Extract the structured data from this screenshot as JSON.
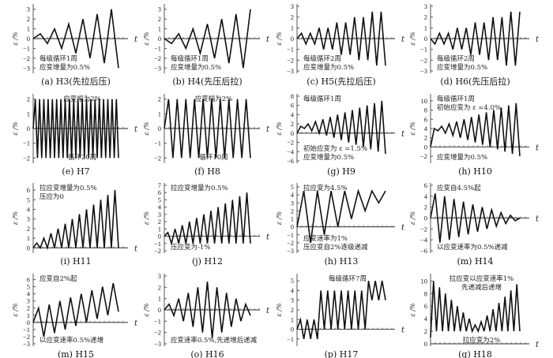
{
  "colors": {
    "line": "#111111",
    "axis": "#555555"
  },
  "chart_data": [
    {
      "type": "line",
      "id": "H3",
      "caption": "(a) H3(先拉后压)",
      "ylabel": "ε /%",
      "xlabel": "t",
      "ylim": [
        -3.3,
        3.3
      ],
      "yticks": [
        -3,
        -2,
        -1,
        0,
        1,
        2,
        3
      ],
      "values": [
        0,
        0.5,
        -0.5,
        1,
        -1,
        1.5,
        -1.5,
        2,
        -2,
        2.5,
        -2.5,
        3,
        -3
      ],
      "annotations": [
        {
          "position": "bottom-left",
          "lines": [
            "每级循环1周",
            "应变增量为0.5%"
          ]
        }
      ]
    },
    {
      "type": "line",
      "id": "H4",
      "caption": "(b) H4(先压后拉)",
      "ylabel": "ε /%",
      "xlabel": "t",
      "ylim": [
        -3.3,
        3.3
      ],
      "yticks": [
        -3,
        -2,
        -1,
        0,
        1,
        2,
        3
      ],
      "values": [
        0,
        -0.5,
        0.5,
        -1,
        1,
        -1.5,
        1.5,
        -2,
        2,
        -2.5,
        2.5,
        -3,
        3
      ],
      "annotations": [
        {
          "position": "bottom-left",
          "lines": [
            "每级循环1周",
            "应变增量为0.5%"
          ]
        }
      ]
    },
    {
      "type": "line",
      "id": "H5",
      "caption": "(c) H5(先拉后压)",
      "ylabel": "ε /%",
      "xlabel": "t",
      "ylim": [
        -3,
        3
      ],
      "yticks": [
        -3,
        -2,
        -1,
        0,
        1,
        2,
        3
      ],
      "values": [
        0,
        0.5,
        -0.5,
        0.5,
        -0.5,
        1,
        -1,
        1,
        -1,
        1.5,
        -1.5,
        1.5,
        -1.5,
        2,
        -2,
        2,
        -2,
        2.5,
        -2.5,
        2.5,
        -2.5
      ],
      "annotations": [
        {
          "position": "bottom-left",
          "lines": [
            "每级循环2周",
            "应变增量为0.5%"
          ]
        }
      ]
    },
    {
      "type": "line",
      "id": "H6",
      "caption": "(d) H6(先压后拉)",
      "ylabel": "ε /%",
      "xlabel": "t",
      "ylim": [
        -3,
        3
      ],
      "yticks": [
        -3,
        -2,
        -1,
        0,
        1,
        2,
        3
      ],
      "values": [
        0,
        -0.5,
        0.5,
        -0.5,
        0.5,
        -1,
        1,
        -1,
        1,
        -1.5,
        1.5,
        -1.5,
        1.5,
        -2,
        2,
        -2,
        2,
        -2.5,
        2.5,
        -2.5,
        2.5
      ],
      "annotations": [
        {
          "position": "bottom-left",
          "lines": [
            "每级循环2周",
            "应变增量为0.5%"
          ]
        }
      ]
    },
    {
      "type": "line",
      "id": "H7",
      "caption": "(e) H7",
      "ylabel": "ε /%",
      "xlabel": "t",
      "ylim": [
        -2.2,
        2.2
      ],
      "yticks": [
        -2,
        -1,
        0,
        1,
        2
      ],
      "values": [
        0,
        2,
        -2,
        2,
        -2,
        2,
        -2,
        2,
        -2,
        2,
        -2,
        2,
        -2,
        2,
        -2,
        2,
        -2,
        2,
        -2,
        2,
        -2,
        2,
        -2,
        2,
        -2,
        2,
        -2,
        2,
        -2,
        2,
        -2,
        2,
        -2,
        2,
        -2,
        2,
        -2,
        2,
        -2,
        2,
        -2
      ],
      "annotations": [
        {
          "position": "top-center",
          "lines": [
            "应变幅为2%"
          ]
        },
        {
          "position": "bottom-center",
          "lines": [
            "循环20周"
          ]
        }
      ]
    },
    {
      "type": "line",
      "id": "H8",
      "caption": "(f) H8",
      "ylabel": "ε /%",
      "xlabel": "t",
      "ylim": [
        -2.2,
        2.2
      ],
      "yticks": [
        -2,
        -1,
        0,
        1,
        2
      ],
      "values": [
        0,
        2,
        -2,
        2,
        -2,
        2,
        -2,
        2,
        -2,
        2,
        -2,
        2,
        -2,
        2,
        -2,
        2,
        -2,
        2,
        -2,
        2,
        -2
      ],
      "annotations": [
        {
          "position": "top-center",
          "lines": [
            "应变幅为2%"
          ]
        },
        {
          "position": "bottom-center",
          "lines": [
            "循环10周"
          ]
        }
      ]
    },
    {
      "type": "line",
      "id": "H9",
      "caption": "(g) H9",
      "ylabel": "ε /%",
      "xlabel": "t",
      "ylim": [
        -6,
        8
      ],
      "yticks": [
        -6,
        -4,
        -2,
        0,
        2,
        4,
        6,
        8
      ],
      "values": [
        0,
        1.5,
        1,
        2,
        0.5,
        2.5,
        0,
        3,
        -0.5,
        3.5,
        -1,
        4,
        -1.5,
        4.5,
        -2,
        5,
        -2.5,
        5.5,
        -3,
        6,
        -3.5,
        6.5,
        -4,
        7,
        -4.5
      ],
      "annotations": [
        {
          "position": "top-left",
          "lines": [
            "每级循环1周"
          ]
        },
        {
          "position": "bottom-left",
          "lines": [
            "初始应变为 ε =1.5%",
            "应变增量为0.5%"
          ]
        }
      ]
    },
    {
      "type": "line",
      "id": "H10",
      "caption": "(h) H10",
      "ylabel": "ε /%",
      "xlabel": "t",
      "ylim": [
        -3,
        11
      ],
      "yticks": [
        -2,
        0,
        2,
        4,
        6,
        8,
        10
      ],
      "values": [
        0,
        4,
        3.5,
        4.5,
        3,
        5,
        2.5,
        5.5,
        2,
        6,
        1.5,
        6.5,
        1,
        7,
        0.5,
        7.5,
        0,
        8,
        -0.5,
        8.5,
        -1,
        9,
        -1.5,
        9.5,
        -2
      ],
      "annotations": [
        {
          "position": "top-left",
          "lines": [
            "每级循环1周",
            "初始应变为 ε =4.0%"
          ]
        },
        {
          "position": "bottom-left",
          "lines": [
            "应变增量为0.5%"
          ]
        }
      ]
    },
    {
      "type": "line",
      "id": "H11",
      "caption": "(i) H11",
      "ylabel": "ε /%",
      "xlabel": "t",
      "ylim": [
        -0.3,
        6.5
      ],
      "yticks": [
        0,
        1,
        2,
        3,
        4,
        5,
        6
      ],
      "values": [
        0,
        0.5,
        0,
        1,
        0,
        1.5,
        0,
        2,
        0,
        2.5,
        0,
        3,
        0,
        3.5,
        0,
        4,
        0,
        4.5,
        0,
        5,
        0,
        5.5,
        0,
        6,
        0
      ],
      "annotations": [
        {
          "position": "top-left",
          "lines": [
            "拉应变增量为0.5%",
            "压应为0"
          ]
        }
      ]
    },
    {
      "type": "line",
      "id": "H12",
      "caption": "(j) H12",
      "ylabel": "ε /%",
      "xlabel": "t",
      "ylim": [
        -2,
        7
      ],
      "yticks": [
        -2,
        -1,
        0,
        1,
        2,
        3,
        4,
        5,
        6,
        7
      ],
      "values": [
        0,
        0.5,
        -1,
        1,
        -1,
        1.5,
        -1,
        2,
        -1,
        2.5,
        -1,
        3,
        -1,
        3.5,
        -1,
        4,
        -1,
        4.5,
        -1,
        5,
        -1,
        5.5,
        -1,
        6,
        -1
      ],
      "annotations": [
        {
          "position": "top-left",
          "lines": [
            "拉应变增量为0.5%"
          ]
        },
        {
          "position": "bottom-left",
          "lines": [
            "压应变为-1%"
          ]
        }
      ]
    },
    {
      "type": "line",
      "id": "H13",
      "caption": "(h) H13",
      "ylabel": "ε /%",
      "xlabel": "t",
      "ylim": [
        -3,
        5.2
      ],
      "yticks": [
        -3,
        -2,
        -1,
        0,
        1,
        2,
        3,
        4,
        5
      ],
      "values": [
        0,
        4.5,
        -2,
        4.5,
        -1,
        4.5,
        0,
        4.5,
        1,
        4.5,
        2,
        4.5,
        3,
        4.5
      ],
      "annotations": [
        {
          "position": "top-left",
          "lines": [
            "拉应变为4.5%"
          ]
        },
        {
          "position": "bottom-left",
          "lines": [
            "应变速率为1%",
            "压应变自2%逐级递减"
          ]
        }
      ]
    },
    {
      "type": "line",
      "id": "H14",
      "caption": "(m) H14",
      "ylabel": "ε /%",
      "xlabel": "t",
      "ylim": [
        -6,
        6
      ],
      "yticks": [
        -6,
        -4,
        -2,
        0,
        2,
        4,
        6
      ],
      "values": [
        0,
        4.5,
        -4.5,
        4,
        -4,
        3.5,
        -3.5,
        3,
        -3,
        2.5,
        -2.5,
        2,
        -2,
        1.5,
        -1.5,
        1,
        -1,
        0.5,
        -0.5,
        0
      ],
      "annotations": [
        {
          "position": "top-left",
          "lines": [
            "应变自4.5%起"
          ]
        },
        {
          "position": "bottom-left",
          "lines": [
            "以应变速率为0.5%递减"
          ]
        }
      ]
    },
    {
      "type": "line",
      "id": "H15",
      "caption": "(m) H15",
      "ylabel": "ε /%",
      "xlabel": "t",
      "ylim": [
        -3,
        6.5
      ],
      "yticks": [
        -3,
        -2,
        -1,
        0,
        1,
        2,
        3,
        4,
        5,
        6
      ],
      "values": [
        0,
        2,
        -2,
        2.5,
        -1.5,
        3,
        -1,
        3.5,
        -0.5,
        4,
        0,
        4.5,
        0.5,
        5,
        1,
        5.5,
        1.5
      ],
      "annotations": [
        {
          "position": "top-left",
          "lines": [
            "应变自2%起"
          ]
        },
        {
          "position": "bottom-left",
          "lines": [
            "以应变速率0.5%递增"
          ]
        }
      ]
    },
    {
      "type": "line",
      "id": "H16",
      "caption": "(o) H16",
      "ylabel": "ε /%",
      "xlabel": "t",
      "ylim": [
        -3,
        3
      ],
      "yticks": [
        -3,
        -2,
        -1,
        0,
        1,
        2,
        3
      ],
      "values": [
        0,
        0.5,
        -0.5,
        1,
        -1,
        1.5,
        -1.5,
        2,
        -2,
        2.5,
        -2.5,
        2,
        -2,
        1.5,
        -1.5,
        1,
        -1,
        0.5,
        -0.5
      ],
      "annotations": [
        {
          "position": "bottom-center",
          "lines": [
            "应变速率0.5%,先递增后递减"
          ]
        }
      ]
    },
    {
      "type": "line",
      "id": "H17",
      "caption": "(p) H17",
      "ylabel": "ε /%",
      "xlabel": "t",
      "ylim": [
        -1.5,
        5.5
      ],
      "yticks": [
        -1,
        0,
        1,
        2,
        3,
        4,
        5
      ],
      "values": [
        0,
        1,
        -1,
        1,
        -1,
        1,
        -1,
        4,
        0,
        4,
        0,
        4,
        0,
        4,
        0,
        4,
        0,
        4,
        0,
        4,
        0,
        5,
        3,
        5,
        3,
        5,
        3
      ],
      "annotations": [
        {
          "position": "top-center",
          "lines": [
            "每级循环7周"
          ]
        }
      ]
    },
    {
      "type": "line",
      "id": "H18",
      "caption": "(q) H18",
      "ylabel": "ε /%",
      "xlabel": "t",
      "ylim": [
        0,
        10.8
      ],
      "yticks": [
        0,
        2,
        4,
        6,
        8,
        10
      ],
      "values": [
        1,
        10,
        2,
        9,
        2,
        8,
        2,
        7,
        2,
        6,
        2,
        5,
        2,
        4,
        2,
        3,
        2,
        3.5,
        2,
        4.5,
        2,
        5.5,
        2,
        6.5,
        2,
        7.5,
        2,
        8.5,
        2,
        9.5,
        2
      ],
      "annotations": [
        {
          "position": "top-center",
          "lines": [
            "拉应变以应变速率1%",
            "先递减后递增"
          ]
        },
        {
          "position": "bottom-center",
          "lines": [
            "拉应变为2%"
          ]
        }
      ]
    }
  ]
}
